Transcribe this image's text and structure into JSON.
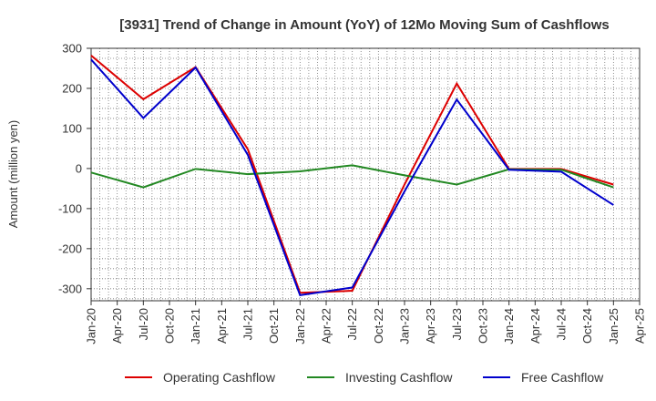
{
  "chart_data": {
    "type": "line",
    "title": "[3931]  Trend of Change in Amount (YoY) of 12Mo Moving Sum of Cashflows",
    "xlabel": "",
    "ylabel": "Amount (million yen)",
    "ylim": [
      -330,
      300
    ],
    "yticks": [
      300,
      200,
      100,
      0,
      -100,
      -200,
      -300
    ],
    "grid": true,
    "legend_position": "bottom",
    "categories": [
      "Jan-20",
      "Apr-20",
      "Jul-20",
      "Oct-20",
      "Jan-21",
      "Apr-21",
      "Jul-21",
      "Oct-21",
      "Jan-22",
      "Apr-22",
      "Jul-22",
      "Oct-22",
      "Jan-23",
      "Apr-23",
      "Jul-23",
      "Oct-23",
      "Jan-24",
      "Apr-24",
      "Jul-24",
      "Oct-24",
      "Jan-25",
      "Apr-25"
    ],
    "series": [
      {
        "name": "Operating Cashflow",
        "color": "#dd0000",
        "values": [
          282,
          null,
          173,
          null,
          253,
          null,
          48,
          null,
          -310,
          null,
          -305,
          null,
          -40,
          null,
          212,
          null,
          -1,
          null,
          -1,
          null,
          -40,
          null
        ]
      },
      {
        "name": "Investing Cashflow",
        "color": "#228822",
        "values": [
          -10,
          null,
          -47,
          null,
          -1,
          null,
          -14,
          null,
          -7,
          null,
          8,
          null,
          -17,
          null,
          -40,
          null,
          -2,
          null,
          -3,
          null,
          -47,
          null
        ]
      },
      {
        "name": "Free Cashflow",
        "color": "#0000cc",
        "values": [
          272,
          null,
          126,
          null,
          252,
          null,
          34,
          null,
          -316,
          null,
          -297,
          null,
          -57,
          null,
          172,
          null,
          -3,
          null,
          -8,
          null,
          -91,
          null
        ]
      }
    ]
  }
}
